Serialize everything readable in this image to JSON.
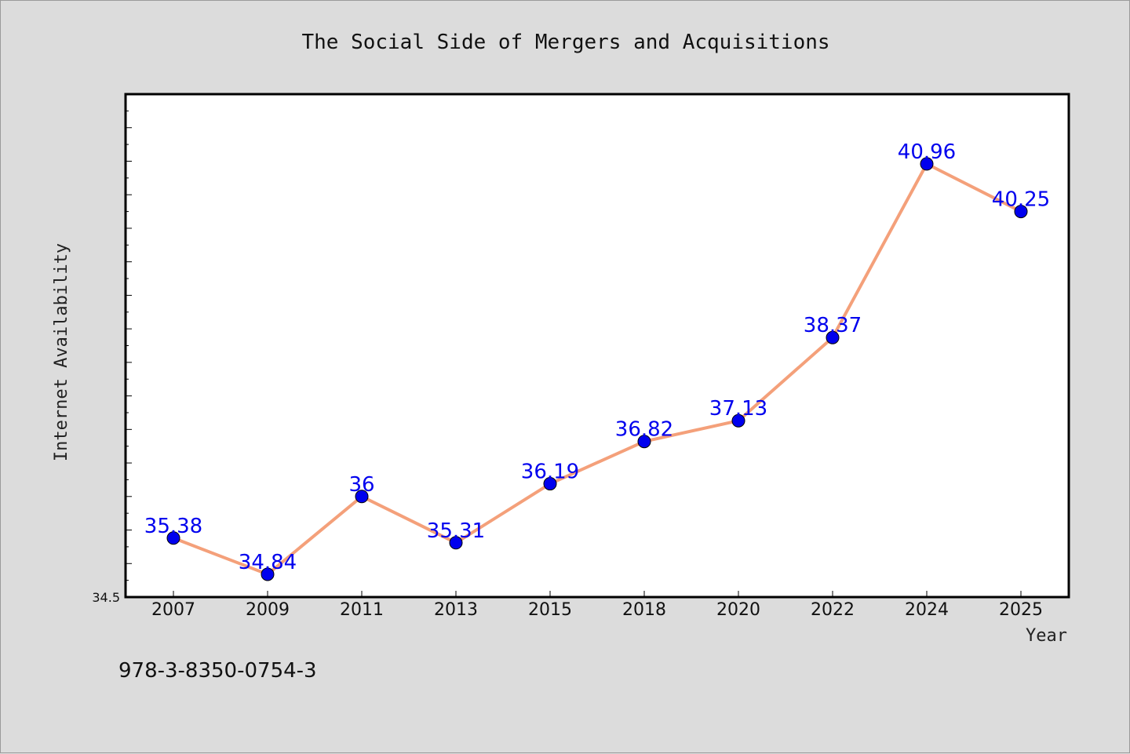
{
  "chart_data": {
    "type": "line",
    "title": "The Social Side of Mergers and Acquisitions",
    "xlabel": "Year",
    "ylabel": "Internet Availability",
    "categories": [
      "2007",
      "2009",
      "2011",
      "2013",
      "2015",
      "2018",
      "2020",
      "2022",
      "2024",
      "2025"
    ],
    "series": [
      {
        "values": [
          35.38,
          34.84,
          36,
          35.31,
          36.19,
          36.82,
          37.13,
          38.37,
          40.96,
          40.25
        ]
      }
    ],
    "y_tick_labels": [
      "34.5"
    ],
    "ylim": [
      34.5,
      42.0
    ],
    "grid": false,
    "legend": "none",
    "line_color": "#f4a07a",
    "marker_color": "#0000ee",
    "label_color": "#0000ee"
  },
  "footer": {
    "isbn": "978-3-8350-0754-3"
  }
}
